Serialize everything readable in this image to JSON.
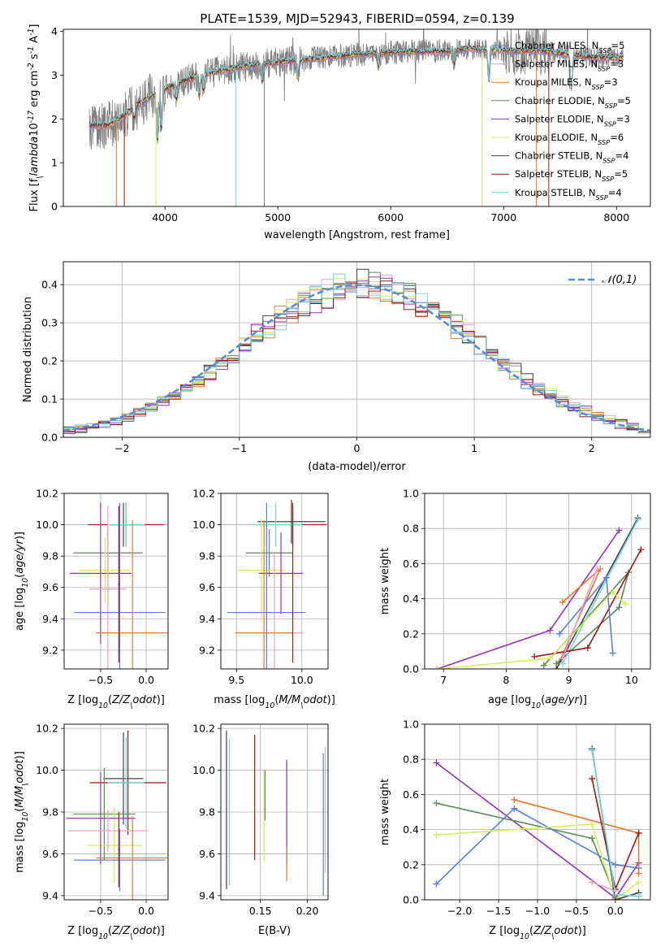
{
  "chart_data": [
    {
      "type": "line",
      "title": "PLATE=1539, MJD=52943, FIBERID=0594, z=0.139",
      "xlabel": "wavelength [Angstrom, rest frame]",
      "ylabel": "Flux [f$_\\lambda$10$^{-17}$ erg cm$^{-2}$ s$^{-1}$ A$^{-1}$]",
      "xlim": [
        3100,
        8300
      ],
      "ylim": [
        0,
        4.05
      ],
      "xticks": [
        "4000",
        "5000",
        "6000",
        "7000",
        "8000"
      ],
      "yticks": [
        "0",
        "1",
        "2",
        "3",
        "4"
      ],
      "grid": false,
      "legend_position": "right",
      "data_note": "observed spectrum (grey) plus 9 model fits; continuum sampled",
      "x": [
        3330,
        3500,
        3700,
        3900,
        4100,
        4300,
        4500,
        4700,
        4900,
        5100,
        5300,
        5500,
        5700,
        5900,
        6100,
        6300,
        6500,
        6700,
        6900,
        7100,
        7300,
        7500,
        7700,
        7900,
        8050
      ],
      "continuum": [
        1.85,
        1.85,
        2.2,
        2.55,
        2.8,
        3.0,
        3.1,
        3.2,
        3.27,
        3.32,
        3.37,
        3.42,
        3.47,
        3.5,
        3.53,
        3.54,
        3.55,
        3.6,
        3.58,
        3.55,
        3.57,
        3.5,
        3.42,
        3.4,
        3.4
      ],
      "series": [
        {
          "name": "Chabrier MILES, N$_{SSP}$=5",
          "color": "#5b7fd8"
        },
        {
          "name": "Salpeter MILES, N$_{SSP}$=3",
          "color": "#e8a0cc"
        },
        {
          "name": "Kroupa MILES, N$_{SSP}$=3",
          "color": "#e27a2a"
        },
        {
          "name": "Chabrier ELODIE, N$_{SSP}$=5",
          "color": "#5e8a5e"
        },
        {
          "name": "Salpeter ELODIE, N$_{SSP}$=3",
          "color": "#9932b8"
        },
        {
          "name": "Kroupa ELODIE, N$_{SSP}$=6",
          "color": "#d4ee5a"
        },
        {
          "name": "Chabrier STELIB, N$_{SSP}$=4",
          "color": "#444444"
        },
        {
          "name": "Salpeter STELIB, N$_{SSP}$=5",
          "color": "#a01818"
        },
        {
          "name": "Kroupa STELIB, N$_{SSP}$=4",
          "color": "#6ed8d8"
        }
      ]
    },
    {
      "type": "line",
      "title": "",
      "xlabel": "(data-model)/error",
      "ylabel": "Normed distribution",
      "xlim": [
        -2.5,
        2.5
      ],
      "ylim": [
        0,
        0.46
      ],
      "xticks": [
        "−2",
        "−1",
        "0",
        "1",
        "2"
      ],
      "yticks": [
        "0.0",
        "0.1",
        "0.2",
        "0.3",
        "0.4"
      ],
      "grid": true,
      "legend_position": "upper right",
      "legend": "$\\mathcal{N}(0,1)$",
      "data_note": "step histograms for each of the 9 fits, dashed standard normal overlay",
      "bin_width": 0.1,
      "series": [
        {
          "name": "gaussian",
          "mu": 0,
          "sigma": 1,
          "color": "#5b8bd6",
          "dashed": true
        }
      ]
    },
    {
      "type": "scatter",
      "title": "",
      "xlabel": "Z [log$_{10}$($Z/Z_\\odot$)]",
      "ylabel": "age  [log$_{10}$($age/yr$)]",
      "xlim": [
        -0.9,
        0.24
      ],
      "ylim": [
        9.08,
        10.2
      ],
      "xticks": [
        "−0.5",
        "0.0"
      ],
      "yticks": [
        "9.2",
        "9.4",
        "9.6",
        "9.8",
        "10.0",
        "10.2"
      ],
      "grid": true,
      "data_note": "error bars, one per fit",
      "points": [
        {
          "x": -0.25,
          "y": 10.0,
          "xerr": 0.22,
          "yerr": 0.14,
          "color": "#444444"
        },
        {
          "x": -0.22,
          "y": 10.0,
          "xerr": 0.42,
          "yerr": 0.14,
          "color": "#a01818"
        },
        {
          "x": -0.22,
          "y": 10.0,
          "xerr": 0.2,
          "yerr": 0.14,
          "color": "#6ed8d8"
        },
        {
          "x": -0.42,
          "y": 9.82,
          "xerr": 0.38,
          "yerr": 0.15,
          "color": "#5e8a5e"
        },
        {
          "x": -0.45,
          "y": 9.71,
          "xerr": 0.28,
          "yerr": 0.21,
          "color": "#d4ee5a"
        },
        {
          "x": -0.5,
          "y": 9.69,
          "xerr": 0.34,
          "yerr": 0.45,
          "color": "#9932b8"
        },
        {
          "x": -0.42,
          "y": 9.59,
          "xerr": 0.2,
          "yerr": 0.53,
          "color": "#e8a0cc"
        },
        {
          "x": -0.29,
          "y": 9.44,
          "xerr": 0.5,
          "yerr": 0.7,
          "color": "#5b7fd8"
        },
        {
          "x": -0.15,
          "y": 9.31,
          "xerr": 0.4,
          "yerr": 0.72,
          "color": "#e27a2a"
        },
        {
          "x": -0.3,
          "y": 9.62,
          "xerr": 0.01,
          "yerr": 0.5,
          "color": "#a01818"
        }
      ]
    },
    {
      "type": "scatter",
      "title": "",
      "xlabel": "mass [log$_{10}$($M/M_\\odot$)]",
      "ylabel": "",
      "xlim": [
        9.38,
        10.2
      ],
      "ylim": [
        9.08,
        10.2
      ],
      "xticks": [
        "9.5",
        "10.0"
      ],
      "yticks": [
        "9.2",
        "9.4",
        "9.6",
        "9.8",
        "10.0",
        "10.2"
      ],
      "grid": true,
      "data_note": "error bars, one per fit",
      "points": [
        {
          "x": 9.92,
          "y": 10.02,
          "xerr": 0.26,
          "yerr": 0.14,
          "color": "#444444"
        },
        {
          "x": 9.93,
          "y": 10.0,
          "xerr": 0.26,
          "yerr": 0.14,
          "color": "#a01818"
        },
        {
          "x": 9.8,
          "y": 10.0,
          "xerr": 0.2,
          "yerr": 0.14,
          "color": "#6ed8d8"
        },
        {
          "x": 9.75,
          "y": 9.82,
          "xerr": 0.18,
          "yerr": 0.15,
          "color": "#5e8a5e"
        },
        {
          "x": 9.69,
          "y": 9.71,
          "xerr": 0.18,
          "yerr": 0.33,
          "color": "#d4ee5a"
        },
        {
          "x": 9.84,
          "y": 9.69,
          "xerr": 0.17,
          "yerr": 0.26,
          "color": "#9932b8"
        },
        {
          "x": 9.79,
          "y": 9.31,
          "xerr": 0.22,
          "yerr": 0.5,
          "color": "#e8a0cc"
        },
        {
          "x": 9.73,
          "y": 9.44,
          "xerr": 0.3,
          "yerr": 0.7,
          "color": "#5b7fd8"
        },
        {
          "x": 9.71,
          "y": 9.31,
          "xerr": 0.22,
          "yerr": 0.72,
          "color": "#e27a2a"
        },
        {
          "x": 9.93,
          "y": 9.62,
          "xerr": 0.0,
          "yerr": 0.5,
          "color": "#a01818"
        }
      ]
    },
    {
      "type": "line",
      "title": "",
      "xlabel": "age  [log$_{10}$($age/yr$)]",
      "ylabel": "mass weight",
      "xlim": [
        6.7,
        10.3
      ],
      "ylim": [
        0,
        1.0
      ],
      "xticks": [
        "7",
        "8",
        "9",
        "10"
      ],
      "yticks": [
        "0.0",
        "0.2",
        "0.4",
        "0.6",
        "0.8",
        "1.0"
      ],
      "grid": true,
      "series": [
        {
          "color": "#9932b8",
          "points": [
            [
              6.9,
              0.0
            ],
            [
              8.7,
              0.22
            ],
            [
              9.8,
              0.79
            ]
          ]
        },
        {
          "color": "#e27a2a",
          "points": [
            [
              8.9,
              0.38
            ],
            [
              9.5,
              0.57
            ],
            [
              8.85,
              0.04
            ]
          ]
        },
        {
          "color": "#5e8a5e",
          "points": [
            [
              8.6,
              0.02
            ],
            [
              9.95,
              0.55
            ],
            [
              9.8,
              0.35
            ],
            [
              8.8,
              0.03
            ]
          ]
        },
        {
          "color": "#444444",
          "points": [
            [
              8.8,
              0.0
            ],
            [
              10.1,
              0.86
            ]
          ]
        },
        {
          "color": "#6ed8d8",
          "points": [
            [
              8.9,
              0.03
            ],
            [
              10.1,
              0.85
            ]
          ]
        },
        {
          "color": "#a01818",
          "points": [
            [
              8.45,
              0.07
            ],
            [
              9.3,
              0.12
            ],
            [
              10.15,
              0.68
            ]
          ]
        },
        {
          "color": "#5b7fd8",
          "points": [
            [
              8.85,
              0.2
            ],
            [
              9.6,
              0.52
            ],
            [
              9.7,
              0.09
            ]
          ]
        },
        {
          "color": "#d4ee5a",
          "points": [
            [
              6.9,
              0.0
            ],
            [
              8.7,
              0.06
            ],
            [
              9.7,
              0.44
            ],
            [
              9.9,
              0.37
            ]
          ]
        },
        {
          "color": "#e8a0cc",
          "points": [
            [
              8.9,
              0.06
            ],
            [
              9.45,
              0.57
            ]
          ]
        }
      ]
    },
    {
      "type": "scatter",
      "title": "",
      "xlabel": "Z [log$_{10}$($Z/Z_\\odot$)]",
      "ylabel": "mass [log$_{10}$($M/M_\\odot$)]",
      "xlim": [
        -0.9,
        0.24
      ],
      "ylim": [
        9.38,
        10.22
      ],
      "xticks": [
        "−0.5",
        "0.0"
      ],
      "yticks": [
        "9.4",
        "9.6",
        "9.8",
        "10.0",
        "10.2"
      ],
      "grid": true,
      "data_note": "error bars, one per fit",
      "points": [
        {
          "x": -0.25,
          "y": 9.96,
          "xerr": 0.22,
          "yerr": 0.22,
          "color": "#444444"
        },
        {
          "x": -0.2,
          "y": 9.94,
          "xerr": 0.42,
          "yerr": 0.25,
          "color": "#a01818"
        },
        {
          "x": -0.22,
          "y": 9.94,
          "xerr": 0.2,
          "yerr": 0.22,
          "color": "#6ed8d8"
        },
        {
          "x": -0.46,
          "y": 9.79,
          "xerr": 0.34,
          "yerr": 0.22,
          "color": "#5e8a5e"
        },
        {
          "x": -0.35,
          "y": 9.64,
          "xerr": 0.3,
          "yerr": 0.18,
          "color": "#d4ee5a"
        },
        {
          "x": -0.5,
          "y": 9.77,
          "xerr": 0.38,
          "yerr": 0.22,
          "color": "#9932b8"
        },
        {
          "x": -0.42,
          "y": 9.71,
          "xerr": 0.44,
          "yerr": 0.1,
          "color": "#e8a0cc"
        },
        {
          "x": -0.29,
          "y": 9.57,
          "xerr": 0.5,
          "yerr": 0.15,
          "color": "#5b7fd8"
        },
        {
          "x": -0.15,
          "y": 9.58,
          "xerr": 0.4,
          "yerr": 0.2,
          "color": "#e27a2a"
        },
        {
          "x": -0.3,
          "y": 9.62,
          "xerr": 0.01,
          "yerr": 0.18,
          "color": "#a01818"
        }
      ]
    },
    {
      "type": "scatter",
      "title": "",
      "xlabel": "E(B-V)",
      "ylabel": "",
      "xlim": [
        0.108,
        0.222
      ],
      "ylim": [
        9.38,
        10.22
      ],
      "xticks": [
        "0.15",
        "0.20"
      ],
      "yticks": [
        "9.4",
        "9.6",
        "9.8",
        "10.0",
        "10.2"
      ],
      "grid": true,
      "data_note": "vertical error bars, one per fit",
      "points": [
        {
          "x": 0.114,
          "y": 9.81,
          "yerr": 0.38,
          "color": "#444444"
        },
        {
          "x": 0.117,
          "y": 9.8,
          "yerr": 0.35,
          "color": "#6ed8d8"
        },
        {
          "x": 0.144,
          "y": 9.87,
          "yerr": 0.3,
          "color": "#a01818"
        },
        {
          "x": 0.154,
          "y": 9.78,
          "yerr": 0.22,
          "color": "#d4ee5a"
        },
        {
          "x": 0.155,
          "y": 9.88,
          "yerr": 0.12,
          "color": "#5e8a5e"
        },
        {
          "x": 0.178,
          "y": 9.8,
          "yerr": 0.25,
          "color": "#9932b8"
        },
        {
          "x": 0.178,
          "y": 9.55,
          "yerr": 0.08,
          "color": "#e27a2a"
        },
        {
          "x": 0.217,
          "y": 9.74,
          "yerr": 0.34,
          "color": "#5b7fd8"
        },
        {
          "x": 0.219,
          "y": 9.81,
          "yerr": 0.3,
          "color": "#e8a0cc"
        }
      ]
    },
    {
      "type": "line",
      "title": "",
      "xlabel": "Z [log$_{10}$($Z/Z_\\odot$)]",
      "ylabel": "mass weight",
      "xlim": [
        -2.45,
        0.45
      ],
      "ylim": [
        0,
        1.0
      ],
      "xticks": [
        "−2.0",
        "−1.5",
        "−1.0",
        "−0.5",
        "0.0"
      ],
      "yticks": [
        "0.0",
        "0.2",
        "0.4",
        "0.6",
        "0.8",
        "1.0"
      ],
      "grid": true,
      "series": [
        {
          "color": "#9932b8",
          "points": [
            [
              -2.3,
              0.78
            ],
            [
              0.0,
              0.01
            ],
            [
              0.3,
              0.21
            ]
          ]
        },
        {
          "color": "#5e8a5e",
          "points": [
            [
              -2.3,
              0.55
            ],
            [
              -0.3,
              0.35
            ],
            [
              0.0,
              0.02
            ]
          ]
        },
        {
          "color": "#5b7fd8",
          "points": [
            [
              -2.3,
              0.09
            ],
            [
              -1.3,
              0.52
            ],
            [
              0.0,
              0.2
            ],
            [
              0.3,
              0.18
            ]
          ]
        },
        {
          "color": "#d4ee5a",
          "points": [
            [
              -2.3,
              0.37
            ],
            [
              -0.3,
              0.43
            ],
            [
              0.0,
              0.0
            ],
            [
              0.3,
              0.1
            ]
          ]
        },
        {
          "color": "#e27a2a",
          "points": [
            [
              -1.3,
              0.57
            ],
            [
              0.3,
              0.38
            ],
            [
              0.3,
              0.15
            ]
          ]
        },
        {
          "color": "#a01818",
          "points": [
            [
              -0.3,
              0.69
            ],
            [
              0.0,
              0.06
            ],
            [
              0.3,
              0.38
            ]
          ]
        },
        {
          "color": "#444444",
          "points": [
            [
              -0.3,
              0.86
            ],
            [
              0.0,
              0.0
            ],
            [
              0.3,
              0.04
            ]
          ]
        },
        {
          "color": "#6ed8d8",
          "points": [
            [
              -0.3,
              0.85
            ],
            [
              0.0,
              0.03
            ],
            [
              0.3,
              0.02
            ]
          ]
        },
        {
          "color": "#e8a0cc",
          "points": [
            [
              -0.3,
              0.1
            ],
            [
              0.0,
              0.05
            ]
          ]
        }
      ]
    }
  ]
}
